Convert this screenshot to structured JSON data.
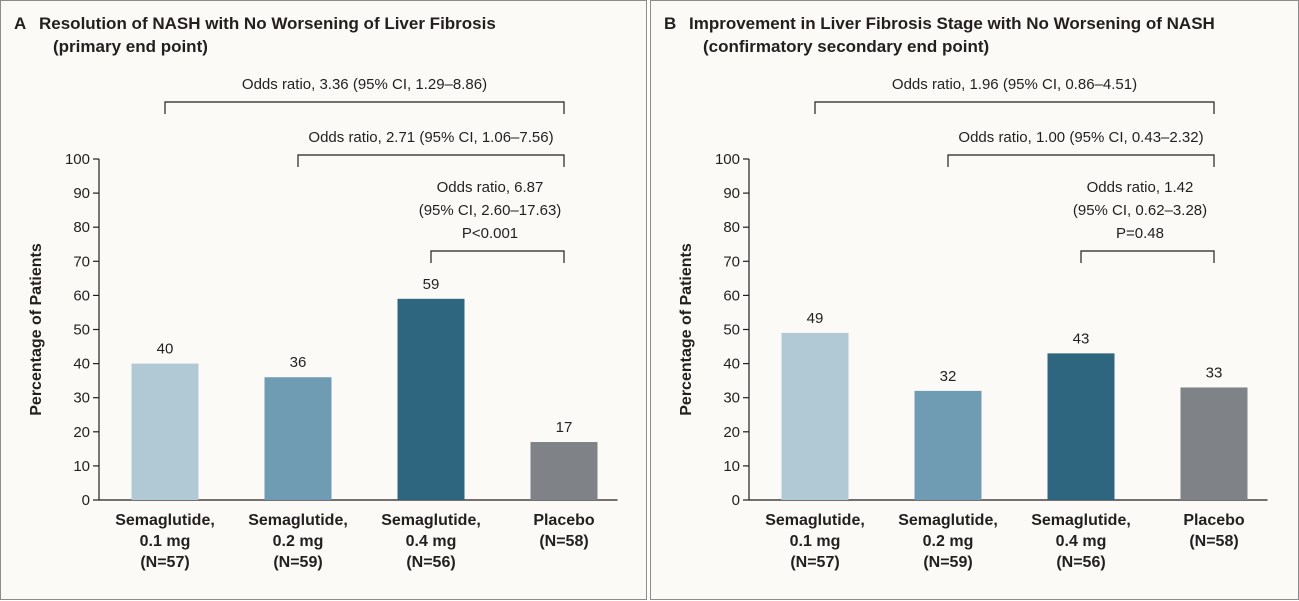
{
  "colors": {
    "semaglutide_0_1": "#b1c9d5",
    "semaglutide_0_2": "#6f9cb2",
    "semaglutide_0_4": "#2e6680",
    "placebo": "#7f8286",
    "background": "#fbfaf7",
    "border": "#8c8c8c"
  },
  "chart_data": [
    {
      "type": "bar",
      "panel_letter": "A",
      "title": "Resolution of NASH with No Worsening of Liver Fibrosis",
      "subtitle": "(primary end point)",
      "ylabel": "Percentage of Patients",
      "xlabel": "",
      "ylim": [
        0,
        100
      ],
      "yticks": [
        0,
        10,
        20,
        30,
        40,
        50,
        60,
        70,
        80,
        90,
        100
      ],
      "categories": [
        [
          "Semaglutide,",
          "0.1 mg",
          "(N=57)"
        ],
        [
          "Semaglutide,",
          "0.2 mg",
          "(N=59)"
        ],
        [
          "Semaglutide,",
          "0.4 mg",
          "(N=56)"
        ],
        [
          "Placebo",
          "(N=58)"
        ]
      ],
      "values": [
        40,
        36,
        59,
        17
      ],
      "value_labels": [
        "40",
        "36",
        "59",
        "17"
      ],
      "grid": false,
      "comparisons": [
        {
          "from": 0,
          "to": 3,
          "lines": [
            "Odds ratio, 3.36 (95% CI, 1.29–8.86)"
          ]
        },
        {
          "from": 1,
          "to": 3,
          "lines": [
            "Odds ratio, 2.71 (95% CI, 1.06–7.56)"
          ]
        },
        {
          "from": 2,
          "to": 3,
          "lines": [
            "Odds ratio, 6.87",
            "(95% CI, 2.60–17.63)",
            "P<0.001"
          ]
        }
      ]
    },
    {
      "type": "bar",
      "panel_letter": "B",
      "title": "Improvement in Liver Fibrosis Stage with No Worsening of NASH",
      "subtitle": "(confirmatory secondary end point)",
      "ylabel": "Percentage of Patients",
      "xlabel": "",
      "ylim": [
        0,
        100
      ],
      "yticks": [
        0,
        10,
        20,
        30,
        40,
        50,
        60,
        70,
        80,
        90,
        100
      ],
      "categories": [
        [
          "Semaglutide,",
          "0.1 mg",
          "(N=57)"
        ],
        [
          "Semaglutide,",
          "0.2 mg",
          "(N=59)"
        ],
        [
          "Semaglutide,",
          "0.4 mg",
          "(N=56)"
        ],
        [
          "Placebo",
          "(N=58)"
        ]
      ],
      "values": [
        49,
        32,
        43,
        33
      ],
      "value_labels": [
        "49",
        "32",
        "43",
        "33"
      ],
      "grid": false,
      "comparisons": [
        {
          "from": 0,
          "to": 3,
          "lines": [
            "Odds ratio, 1.96 (95% CI, 0.86–4.51)"
          ]
        },
        {
          "from": 1,
          "to": 3,
          "lines": [
            "Odds ratio, 1.00 (95% CI, 0.43–2.32)"
          ]
        },
        {
          "from": 2,
          "to": 3,
          "lines": [
            "Odds ratio, 1.42",
            "(95% CI, 0.62–3.28)",
            "P=0.48"
          ]
        }
      ]
    }
  ]
}
